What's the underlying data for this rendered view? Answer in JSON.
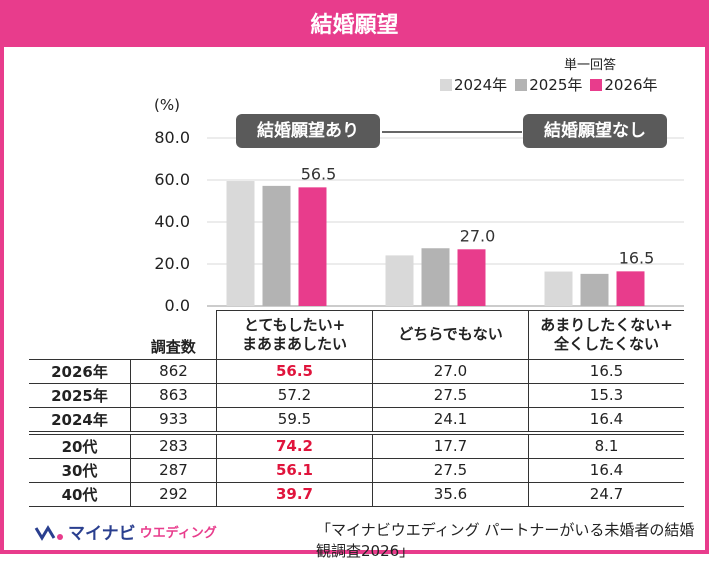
{
  "title": "結婚願望",
  "note": "単一回答",
  "unit": "(%)",
  "callouts": {
    "yes": "結婚願望あり",
    "no": "結婚願望なし"
  },
  "colors": {
    "2024": "#d9d9d9",
    "2025": "#b3b3b3",
    "2026": "#e83c8c",
    "accent": "#e83c8c",
    "highlight": "#e0143c"
  },
  "chart_data": {
    "type": "bar",
    "categories": [
      "とてもしたい+\nまあまあしたい",
      "どちらでもない",
      "あまりしたくない+\n全くしたくない"
    ],
    "series": [
      {
        "name": "2024年",
        "values": [
          59.5,
          24.1,
          16.4
        ]
      },
      {
        "name": "2025年",
        "values": [
          57.2,
          27.5,
          15.3
        ]
      },
      {
        "name": "2026年",
        "values": [
          56.5,
          27.0,
          16.5
        ]
      }
    ],
    "data_labels": [
      "56.5",
      "27.0",
      "16.5"
    ],
    "ylabel": "(%)",
    "ylim": [
      0,
      80
    ],
    "yticks": [
      "0.0",
      "20.0",
      "40.0",
      "60.0",
      "80.0"
    ],
    "grid": true,
    "legend": "top-right"
  },
  "table": {
    "sample_label": "調査数",
    "header": [
      "とてもしたい+\nまあまあしたい",
      "どちらでもない",
      "あまりしたくない+\n全くしたくない"
    ],
    "rows": [
      {
        "label": "2026年",
        "n": "862",
        "v": [
          "56.5",
          "27.0",
          "16.5"
        ],
        "hi": true
      },
      {
        "label": "2025年",
        "n": "863",
        "v": [
          "57.2",
          "27.5",
          "15.3"
        ],
        "hi": false
      },
      {
        "label": "2024年",
        "n": "933",
        "v": [
          "59.5",
          "24.1",
          "16.4"
        ],
        "hi": false
      },
      {
        "label": "20代",
        "n": "283",
        "v": [
          "74.2",
          "17.7",
          "8.1"
        ],
        "hi": true
      },
      {
        "label": "30代",
        "n": "287",
        "v": [
          "56.1",
          "27.5",
          "16.4"
        ],
        "hi": true
      },
      {
        "label": "40代",
        "n": "292",
        "v": [
          "39.7",
          "35.6",
          "24.7"
        ],
        "hi": true
      }
    ]
  },
  "footer": {
    "logo": "マイナビ",
    "logo_sub": "ウエディング",
    "source": "「マイナビウエディング パートナーがいる未婚者の結婚観調査2026」"
  }
}
